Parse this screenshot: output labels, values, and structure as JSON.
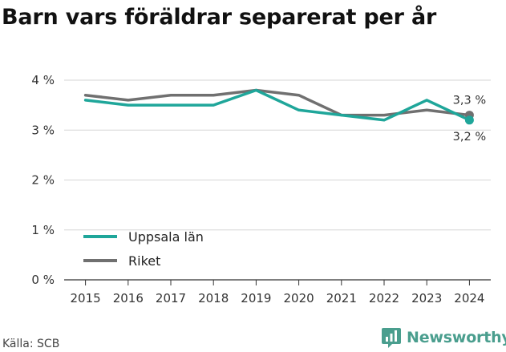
{
  "title": "Barn vars föräldrar separerat per år",
  "source": "Källa: SCB",
  "brand": {
    "name": "Newsworthy",
    "color": "#4a9e8e",
    "icon": "bar-chart-logo-icon"
  },
  "chart_data": {
    "type": "line",
    "x": [
      "2015",
      "2016",
      "2017",
      "2018",
      "2019",
      "2020",
      "2021",
      "2022",
      "2023",
      "2024"
    ],
    "series": [
      {
        "name": "Uppsala län",
        "color": "#1fa69a",
        "values": [
          3.6,
          3.5,
          3.5,
          3.5,
          3.8,
          3.4,
          3.3,
          3.2,
          3.6,
          3.2
        ],
        "end_label": "3,2 %"
      },
      {
        "name": "Riket",
        "color": "#707070",
        "values": [
          3.7,
          3.6,
          3.7,
          3.7,
          3.8,
          3.7,
          3.3,
          3.3,
          3.4,
          3.3
        ],
        "end_label": "3,3 %"
      }
    ],
    "yticks": [
      0,
      1,
      2,
      3,
      4
    ],
    "ytick_labels": [
      "0 %",
      "1 %",
      "2 %",
      "3 %",
      "4 %"
    ],
    "ylim": [
      0,
      4
    ],
    "grid": true,
    "legend_position": "bottom-left",
    "xlabel": "",
    "ylabel": ""
  }
}
